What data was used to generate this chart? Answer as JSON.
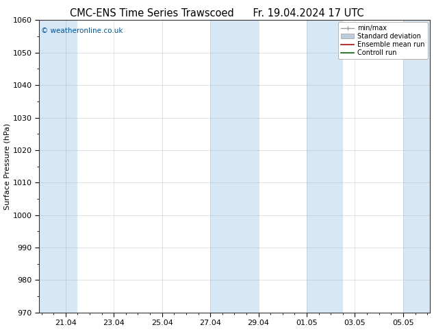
{
  "title_left": "CMC-ENS Time Series Trawscoed",
  "title_right": "Fr. 19.04.2024 17 UTC",
  "ylabel": "Surface Pressure (hPa)",
  "ylim": [
    970,
    1060
  ],
  "yticks": [
    970,
    980,
    990,
    1000,
    1010,
    1020,
    1030,
    1040,
    1050,
    1060
  ],
  "xtick_labels": [
    "21.04",
    "23.04",
    "25.04",
    "27.04",
    "29.04",
    "01.05",
    "03.05",
    "05.05"
  ],
  "shaded_color": "#d6e8f5",
  "background_color": "#ffffff",
  "copyright_text": "© weatheronline.co.uk",
  "copyright_color": "#0055aa",
  "legend_items": [
    {
      "label": "min/max",
      "type": "minmax"
    },
    {
      "label": "Standard deviation",
      "type": "std"
    },
    {
      "label": "Ensemble mean run",
      "color": "#cc0000",
      "type": "line"
    },
    {
      "label": "Controll run",
      "color": "#006600",
      "type": "line"
    }
  ],
  "title_fontsize": 10.5,
  "label_fontsize": 8,
  "tick_fontsize": 8,
  "grid_color": "#aaaaaa",
  "minmax_color": "#999999",
  "std_color": "#bbccdd"
}
